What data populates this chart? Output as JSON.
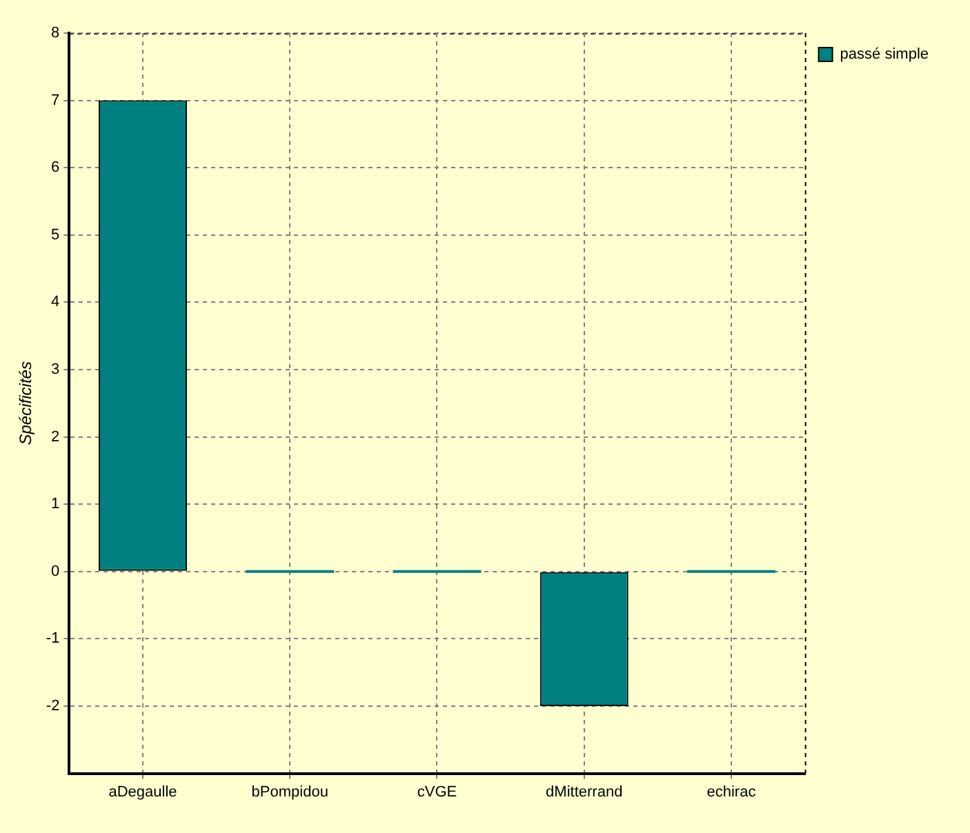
{
  "chart_data": {
    "type": "bar",
    "ylabel": "Spécificités",
    "categories": [
      "aDegaulle",
      "bPompidou",
      "cVGE",
      "dMitterrand",
      "echirac"
    ],
    "series": [
      {
        "name": "passé simple",
        "color": "#008080",
        "values": [
          7,
          0,
          0,
          -2,
          0
        ]
      }
    ],
    "ylim": [
      -3,
      8
    ],
    "yticks": [
      -2,
      -1,
      0,
      1,
      2,
      3,
      4,
      5,
      6,
      7,
      8
    ],
    "grid": true,
    "legend": "top right"
  }
}
